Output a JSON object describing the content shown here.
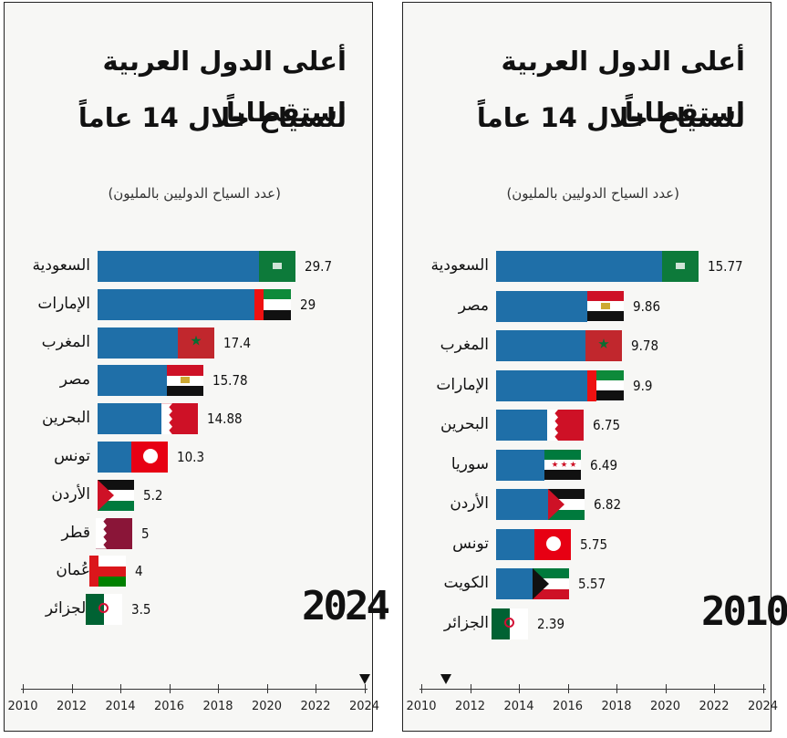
{
  "panels": [
    {
      "title_line1": "أعلى الدول العربية استقطاباً",
      "title_line2": "للسياح خلال 14 عاماً",
      "subtitle": "(عدد السياح الدوليين بالمليون)",
      "year": "2024",
      "timeline_marker": 2024
    },
    {
      "title_line1": "أعلى الدول العربية استقطاباً",
      "title_line2": "للسياح خلال 14 عاماً",
      "subtitle": "(عدد السياح الدوليين بالمليون)",
      "year": "2010",
      "timeline_marker": 2011
    }
  ],
  "chart_data": [
    {
      "type": "bar",
      "orientation": "horizontal",
      "title": "أعلى الدول العربية استقطاباً للسياح خلال 14 عاماً",
      "subtitle": "(عدد السياح الدوليين بالمليون)",
      "year": "2024",
      "categories": [
        "السعودية",
        "الإمارات",
        "المغرب",
        "مصر",
        "البحرين",
        "تونس",
        "الأردن",
        "قطر",
        "عُمان",
        "الجزائر"
      ],
      "value_labels": [
        "29.7",
        "29",
        "17.4",
        "15.78",
        "14.88",
        "10.3",
        "5.2",
        "5",
        "4",
        "3.5"
      ],
      "values": [
        29.7,
        29,
        17.4,
        15.78,
        14.88,
        10.3,
        5.2,
        5,
        4,
        3.5
      ],
      "flags": [
        "saudi",
        "uae",
        "morocco",
        "egypt",
        "bahrain",
        "tunisia",
        "jordan",
        "qatar",
        "oman",
        "algeria"
      ],
      "timeline": {
        "ticks": [
          "2010",
          "2012",
          "2014",
          "2016",
          "2018",
          "2020",
          "2022",
          "2024"
        ],
        "marker": 2024
      }
    },
    {
      "type": "bar",
      "orientation": "horizontal",
      "title": "أعلى الدول العربية استقطاباً للسياح خلال 14 عاماً",
      "subtitle": "(عدد السياح الدوليين بالمليون)",
      "year": "2010",
      "categories": [
        "السعودية",
        "مصر",
        "المغرب",
        "الإمارات",
        "البحرين",
        "سوريا",
        "الأردن",
        "تونس",
        "الكويت",
        "الجزائر"
      ],
      "value_labels": [
        "15.77",
        "9.86",
        "9.78",
        "9.9",
        "6.75",
        "6.49",
        "6.82",
        "5.75",
        "5.57",
        "2.39"
      ],
      "values": [
        15.77,
        9.86,
        9.78,
        9.9,
        6.75,
        6.49,
        6.82,
        5.75,
        5.57,
        2.39
      ],
      "flags": [
        "saudi",
        "egypt",
        "morocco",
        "uae",
        "bahrain",
        "syria",
        "jordan",
        "tunisia",
        "kuwait",
        "algeria"
      ],
      "timeline": {
        "ticks": [
          "2010",
          "2012",
          "2014",
          "2016",
          "2018",
          "2020",
          "2022",
          "2024"
        ],
        "marker": 2011
      }
    }
  ],
  "colors": {
    "bar": "#1f6fa8"
  }
}
